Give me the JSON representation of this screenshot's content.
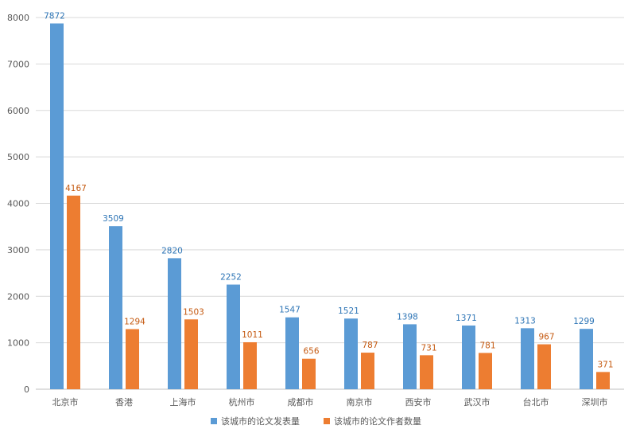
{
  "colors": {
    "series_1": "#5b9bd5",
    "series_2": "#ed7d31",
    "grid": "#d9d9d9",
    "text": "#595959"
  },
  "chart_data": {
    "type": "bar",
    "categories": [
      "北京市",
      "香港",
      "上海市",
      "杭州市",
      "成都市",
      "南京市",
      "西安市",
      "武汉市",
      "台北市",
      "深圳市"
    ],
    "series": [
      {
        "name": "该城市的论文发表量",
        "values": [
          7872,
          3509,
          2820,
          2252,
          1547,
          1521,
          1398,
          1371,
          1313,
          1299
        ]
      },
      {
        "name": "该城市的论文作者数量",
        "values": [
          4167,
          1294,
          1503,
          1011,
          656,
          787,
          731,
          781,
          967,
          371
        ]
      }
    ],
    "yticks": [
      "0",
      "1000",
      "2000",
      "3000",
      "4000",
      "5000",
      "6000",
      "7000",
      "8000"
    ],
    "ylim": [
      0,
      8000
    ],
    "grid": true,
    "legend": "bottom",
    "data_labels": true
  }
}
